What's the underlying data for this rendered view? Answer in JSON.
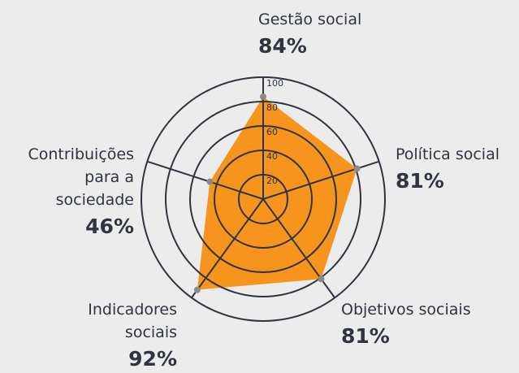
{
  "chart_data": {
    "type": "radar",
    "categories": [
      "Gestão social",
      "Política social",
      "Objetivos sociais",
      "Indicadores sociais",
      "Contribuições para a sociedade"
    ],
    "values": [
      84,
      81,
      81,
      92,
      46
    ],
    "value_labels": [
      "84%",
      "81%",
      "81%",
      "92%",
      "46%"
    ],
    "color": "#f7941d",
    "ylim": [
      0,
      100
    ],
    "yticks": [
      20,
      40,
      60,
      80,
      100
    ],
    "grid": true
  }
}
